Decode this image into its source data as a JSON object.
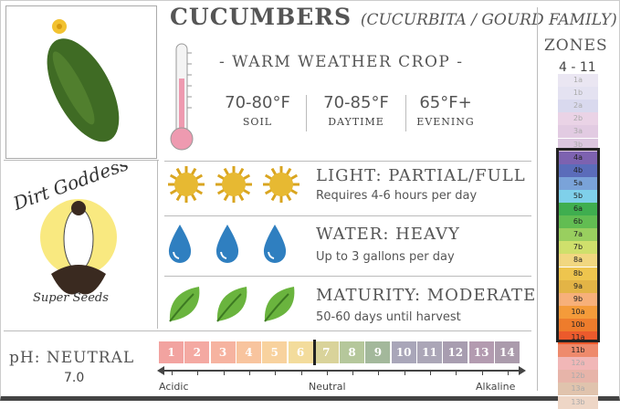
{
  "title": "CUCUMBERS",
  "subtitle": "(CUCURBITA / GOURD FAMILY)",
  "crop_type": "- WARM WEATHER CROP -",
  "temps": [
    {
      "value": "70-80°F",
      "label": "SOIL"
    },
    {
      "value": "70-85°F",
      "label": "DAYTIME"
    },
    {
      "value": "65°F+",
      "label": "EVENING"
    }
  ],
  "logo_text": "Dirt Goddess Super Seeds",
  "light": {
    "heading": "LIGHT: PARTIAL/FULL",
    "detail": "Requires 4-6 hours per day",
    "icon": "sun-icon",
    "count": 3
  },
  "water": {
    "heading": "WATER: HEAVY",
    "detail": "Up to 3 gallons per day",
    "icon": "water-drop-icon",
    "count": 3
  },
  "maturity": {
    "heading": "MATURITY: MODERATE",
    "detail": "50-60 days until harvest",
    "icon": "leaf-icon",
    "count": 3
  },
  "ph": {
    "label": "pH: NEUTRAL",
    "value": "7.0",
    "scale": [
      "1",
      "2",
      "3",
      "4",
      "5",
      "6",
      "7",
      "8",
      "9",
      "10",
      "11",
      "12",
      "13",
      "14"
    ],
    "colors": [
      "#f2a3a0",
      "#f4a9a2",
      "#f6b3a0",
      "#f8c49e",
      "#f8d29e",
      "#f3dc9c",
      "#d9d39a",
      "#b5c79b",
      "#a3b89b",
      "#a9a6b9",
      "#aba6b7",
      "#a89db0",
      "#b39bb0",
      "#ab9bac"
    ],
    "acidic": "Acidic",
    "neutral": "Neutral",
    "alkaline": "Alkaline",
    "marker": 7.0
  },
  "zones": {
    "title": "ZONES",
    "range": "4 - 11",
    "list": [
      "1a",
      "1b",
      "2a",
      "2b",
      "3a",
      "3b",
      "4a",
      "4b",
      "5a",
      "5b",
      "6a",
      "6b",
      "7a",
      "7b",
      "8a",
      "8b",
      "9a",
      "9b",
      "10a",
      "10b",
      "11a",
      "11b",
      "12a",
      "12b",
      "13a",
      "13b"
    ],
    "colors": [
      "#eae6f2",
      "#e4e2f1",
      "#d9d9ee",
      "#ead3e6",
      "#e2cbe2",
      "#dbc6de",
      "#7d62b0",
      "#5b6cba",
      "#7aa3d9",
      "#7fd0ea",
      "#3fae4f",
      "#62bd52",
      "#99cf5f",
      "#cfe06c",
      "#f1d780",
      "#eec54e",
      "#e3b446",
      "#f7b07a",
      "#f49b3a",
      "#ee7c2c",
      "#ec5a2c",
      "#ee8a6c",
      "#f1b7b7",
      "#e7b4a9",
      "#e0c3ad",
      "#eed6c6"
    ],
    "selected_start": "4a",
    "selected_end": "11b"
  }
}
